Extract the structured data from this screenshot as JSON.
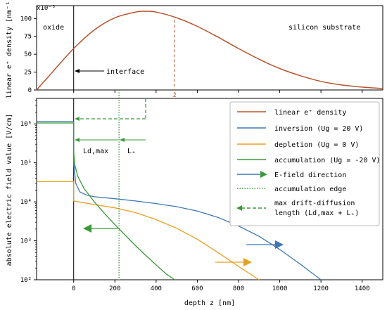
{
  "chart_data": [
    {
      "type": "line",
      "panel": "top",
      "title": "",
      "xlabel": "",
      "ylabel": "linear e⁺ density [nm⁻¹]",
      "y_scale_label": "x10⁻⁵",
      "xlim": [
        -180,
        1500
      ],
      "ylim": [
        0,
        118
      ],
      "yticks": [
        0,
        25,
        50,
        75,
        100
      ],
      "region_labels": {
        "left": "oxide",
        "right": "silicon substrate"
      },
      "annotations": {
        "interface": "interface",
        "zbar": "z̄"
      },
      "zbar_x": 490,
      "series": [
        {
          "name": "linear e⁺ density",
          "color": "#b5532d",
          "x": [
            -180,
            -100,
            0,
            100,
            200,
            300,
            350,
            400,
            500,
            600,
            700,
            800,
            900,
            1000,
            1100,
            1200,
            1300,
            1400,
            1500
          ],
          "y": [
            0,
            26,
            58,
            84,
            101,
            109,
            110,
            109,
            101,
            89,
            74,
            58,
            43,
            30,
            20,
            12,
            7,
            4,
            2
          ]
        }
      ]
    },
    {
      "type": "line",
      "panel": "bottom",
      "title": "",
      "xlabel": "depth z [nm]",
      "ylabel": "absolute electric field value [V/cm]",
      "xlim": [
        -180,
        1500
      ],
      "ylim": [
        100,
        4500000
      ],
      "y_scale": "log",
      "xticks": [
        0,
        200,
        400,
        600,
        800,
        1000,
        1200,
        1400
      ],
      "xtick_labels": [
        "0",
        "200",
        "400",
        "600",
        "800",
        "1000",
        "1200",
        "1400"
      ],
      "ytick_labels": [
        "10²",
        "10³",
        "10⁴",
        "10⁵",
        "10⁶"
      ],
      "legend_position": "top-right",
      "legend": [
        "linear e⁺ density",
        "inversion (Ug = 20 V)",
        "depletion (Ug = 0 V)",
        "accumulation (Ug = -20 V)",
        "E-field direction",
        "accumulation edge",
        "max drift-diffusion length (Ld,max + L₊)"
      ],
      "series": [
        {
          "name": "inversion (Ug = 20 V)",
          "color": "#3c78b4",
          "x": [
            -180,
            -0.1,
            0,
            10,
            30,
            60,
            100,
            200,
            300,
            400,
            500,
            600,
            700,
            800,
            900,
            1000,
            1100,
            1200
          ],
          "y": [
            1150000,
            1150000,
            110000,
            30000,
            18000,
            15000,
            13500,
            12000,
            10500,
            9000,
            7500,
            5800,
            4000,
            2400,
            1300,
            600,
            250,
            100
          ]
        },
        {
          "name": "depletion (Ug = 0 V)",
          "color": "#e8a020",
          "x": [
            -180,
            -0.1,
            0,
            100,
            200,
            300,
            400,
            500,
            600,
            700,
            800,
            900
          ],
          "y": [
            33000,
            33000,
            10500,
            8500,
            7000,
            5300,
            3500,
            2100,
            1100,
            500,
            220,
            100
          ]
        },
        {
          "name": "accumulation (Ug = -20 V)",
          "color": "#3a9a3a",
          "x": [
            -180,
            -0.1,
            0,
            5,
            20,
            50,
            100,
            150,
            200,
            250,
            300,
            350,
            400,
            450,
            490
          ],
          "y": [
            1050000,
            1050000,
            190000,
            90000,
            45000,
            22000,
            10000,
            5000,
            2600,
            1400,
            750,
            420,
            240,
            140,
            100
          ]
        }
      ],
      "accumulation_edge_x": 220,
      "drift_lengths": {
        "Ld_max_label": "Ld,max",
        "Lplus_label": "L₊"
      },
      "efield_arrows": [
        {
          "series": "inversion",
          "color": "#3c78b4",
          "direction": "right"
        },
        {
          "series": "depletion",
          "color": "#e8a020",
          "direction": "right"
        },
        {
          "series": "accumulation",
          "color": "#3a9a3a",
          "direction": "left"
        }
      ]
    }
  ]
}
